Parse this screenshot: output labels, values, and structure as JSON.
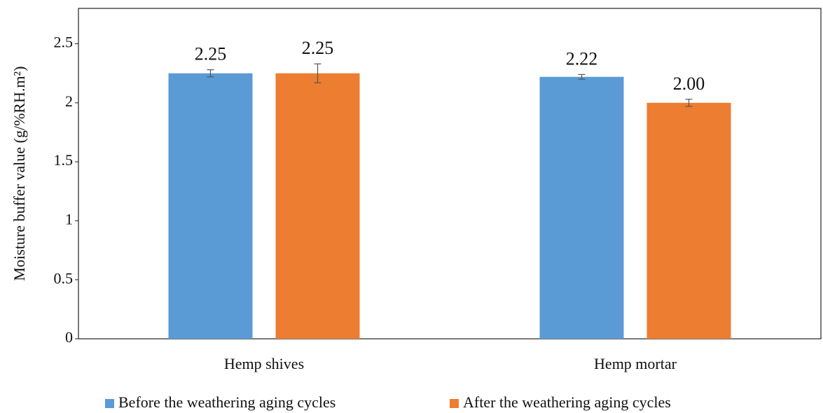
{
  "chart_data": {
    "type": "bar",
    "y_label": "Moisture buffer value (g/%RH.m²)",
    "categories": [
      "Hemp shives",
      "Hemp mortar"
    ],
    "series": [
      {
        "name": "Before the weathering aging cycles",
        "color": "#5b9bd5",
        "values": [
          2.25,
          2.22
        ],
        "value_labels": [
          "2.25",
          "2.22"
        ],
        "errors": [
          0.03,
          0.02
        ]
      },
      {
        "name": "After the weathering aging cycles",
        "color": "#ed7d31",
        "values": [
          2.25,
          2.0
        ],
        "value_labels": [
          "2.25",
          "2.00"
        ],
        "errors": [
          0.08,
          0.03
        ]
      }
    ],
    "ylim": [
      0,
      2.8
    ],
    "yticks": [
      0,
      0.5,
      1,
      1.5,
      2,
      2.5
    ],
    "grid": false,
    "legend": "bottom"
  }
}
